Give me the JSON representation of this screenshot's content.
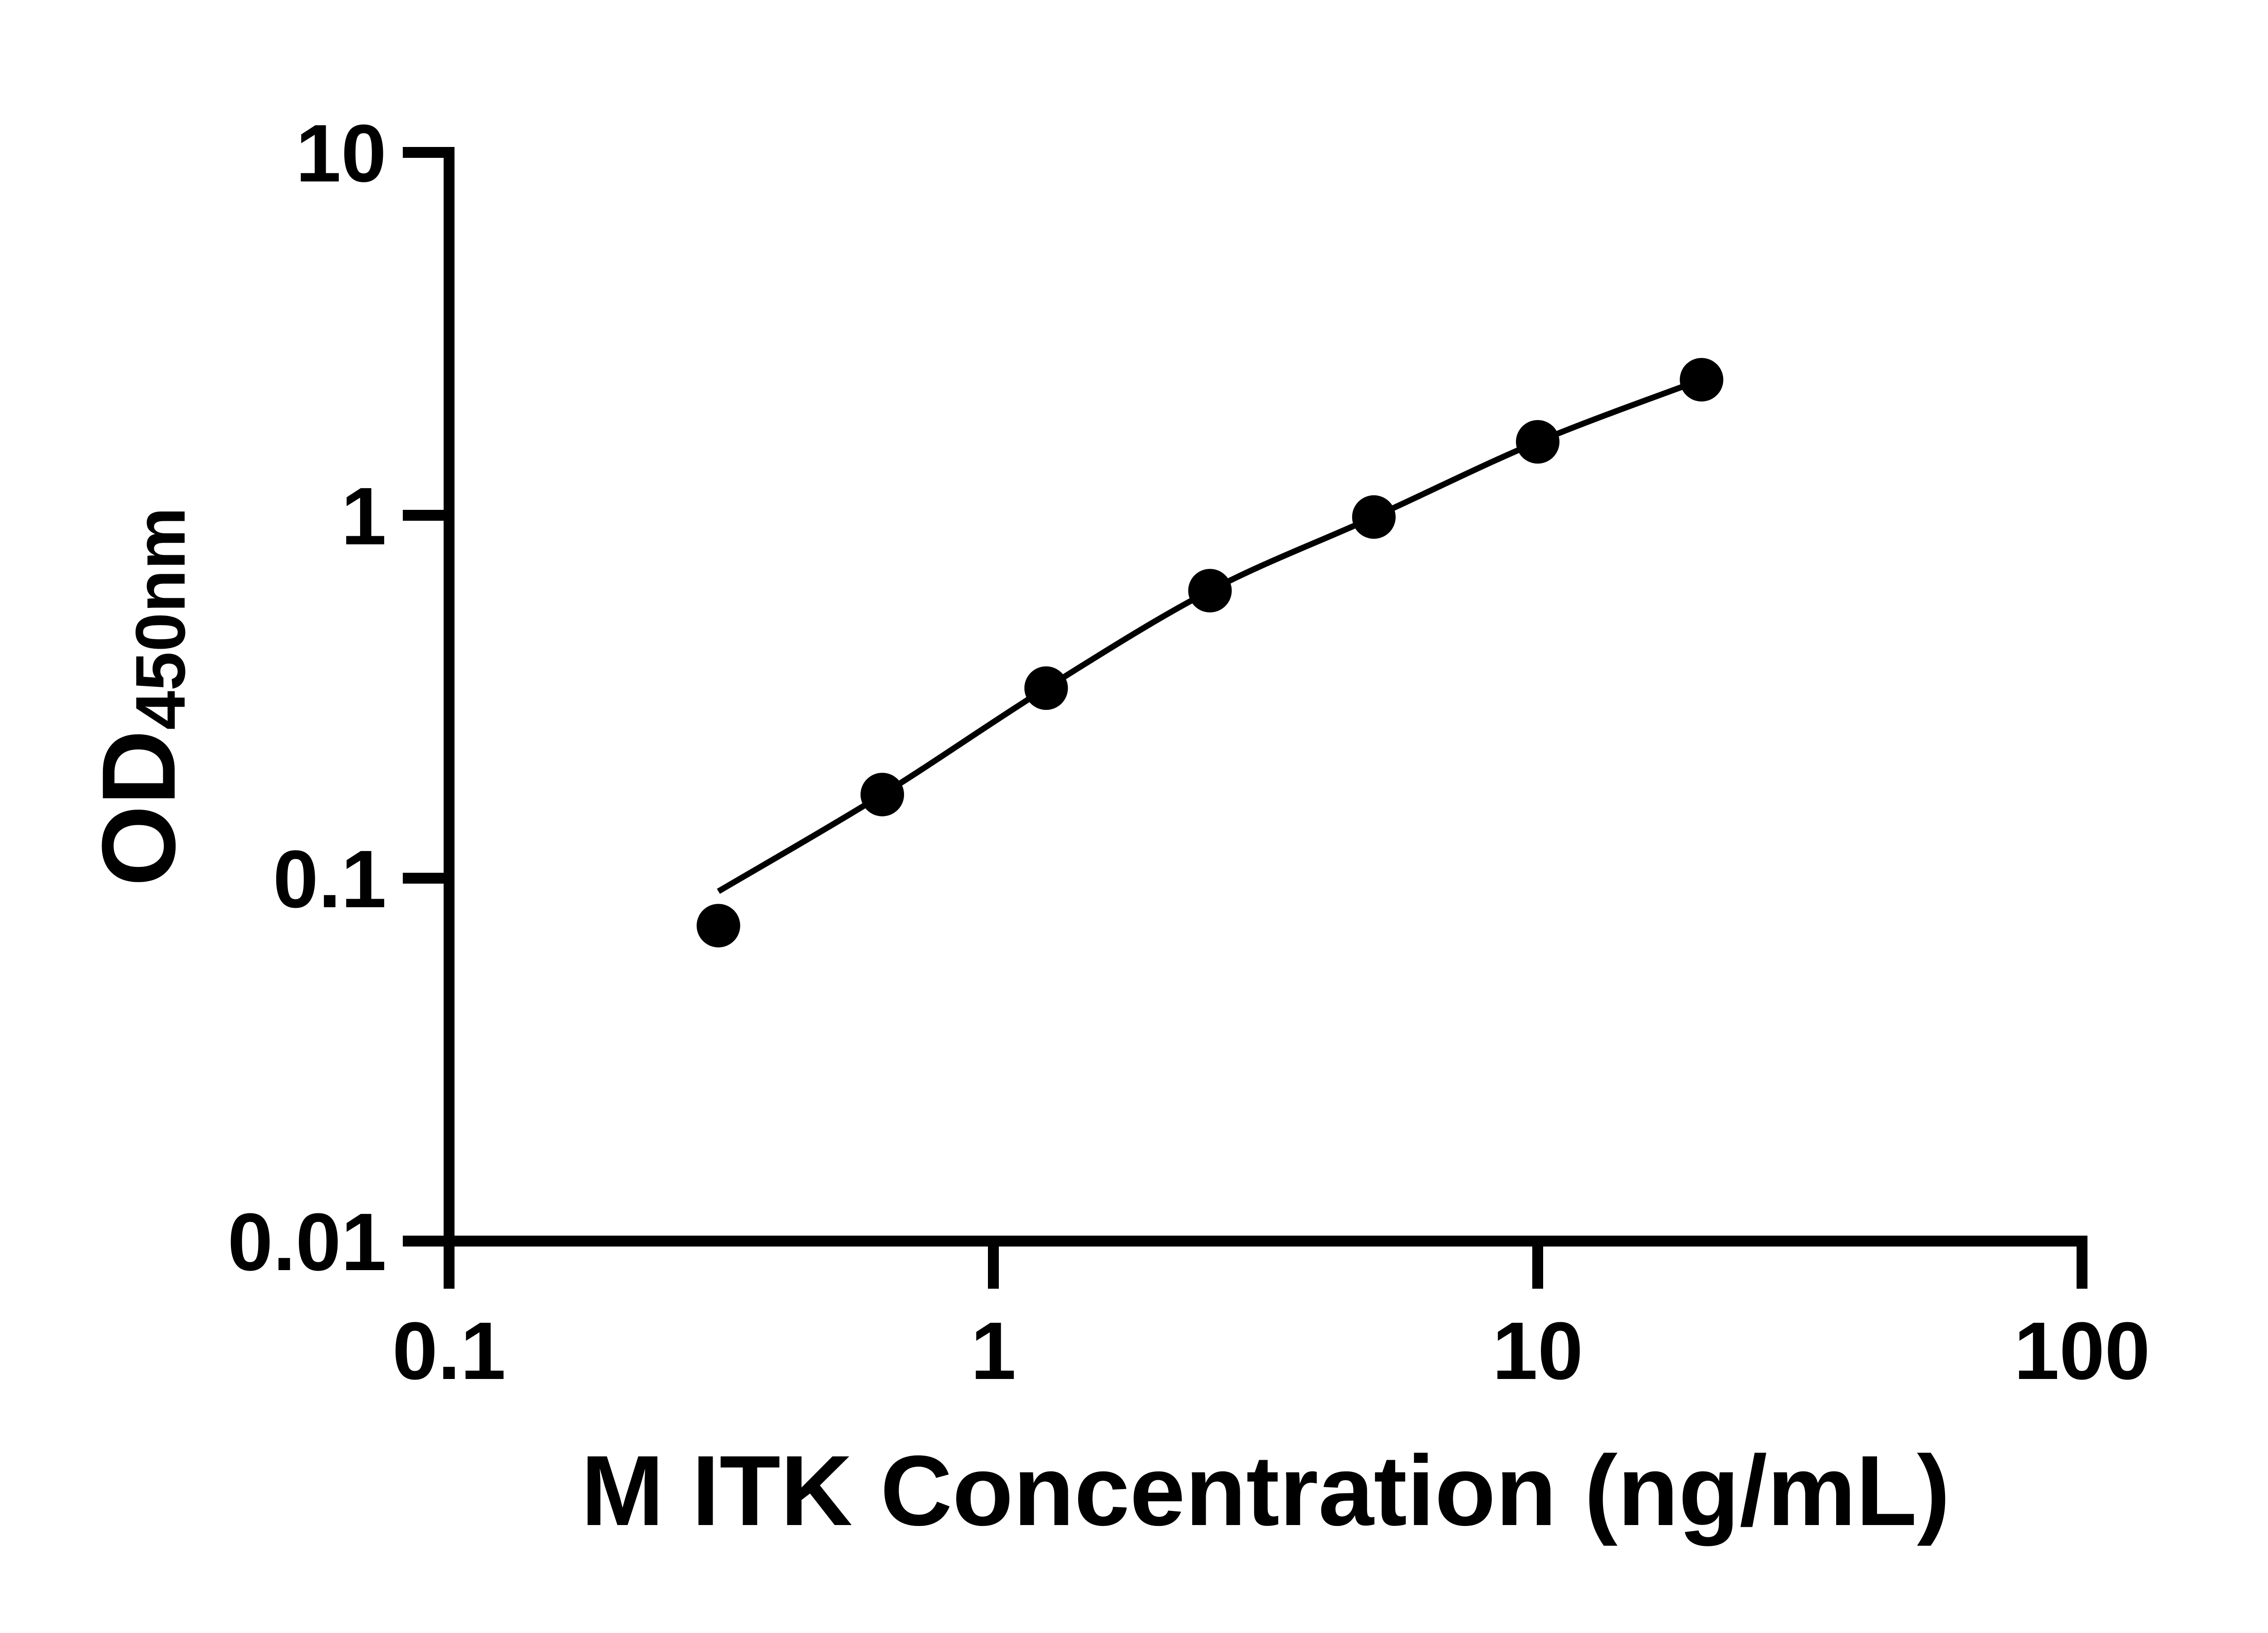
{
  "figure": {
    "background": "#ffffff",
    "ink": "#000000"
  },
  "chart_data": {
    "type": "scatter",
    "title": "",
    "xlabel": "M ITK Concentration (ng/mL)",
    "ylabel": "OD",
    "ylabel_subscript": "450nm",
    "x_scale": "log10",
    "y_scale": "log10",
    "xlim": [
      0.1,
      100
    ],
    "ylim": [
      0.01,
      10
    ],
    "grid": false,
    "legend": "none",
    "x_ticks": [
      {
        "value": 0.1,
        "label": "0.1"
      },
      {
        "value": 1,
        "label": "1"
      },
      {
        "value": 10,
        "label": "10"
      },
      {
        "value": 100,
        "label": "100"
      }
    ],
    "y_ticks": [
      {
        "value": 10,
        "label": "10"
      },
      {
        "value": 1,
        "label": "1"
      },
      {
        "value": 0.1,
        "label": "0.1"
      },
      {
        "value": 0.01,
        "label": "0.01"
      }
    ],
    "series": [
      {
        "name": "standard-curve-points",
        "marker": "filled-circle",
        "points": [
          {
            "x": 0.3125,
            "od": 0.074
          },
          {
            "x": 0.625,
            "od": 0.17
          },
          {
            "x": 1.25,
            "od": 0.334
          },
          {
            "x": 2.5,
            "od": 0.62
          },
          {
            "x": 5,
            "od": 0.989
          },
          {
            "x": 10,
            "od": 1.594
          },
          {
            "x": 20,
            "od": 2.364
          }
        ]
      }
    ],
    "fit_curve": {
      "name": "four-parameter-logistic-fit",
      "points": [
        {
          "x": 0.3125,
          "od": 0.092
        },
        {
          "x": 0.625,
          "od": 0.17
        },
        {
          "x": 1.25,
          "od": 0.334
        },
        {
          "x": 2.5,
          "od": 0.62
        },
        {
          "x": 5,
          "od": 0.989
        },
        {
          "x": 10,
          "od": 1.594
        },
        {
          "x": 20,
          "od": 2.364
        }
      ]
    }
  }
}
